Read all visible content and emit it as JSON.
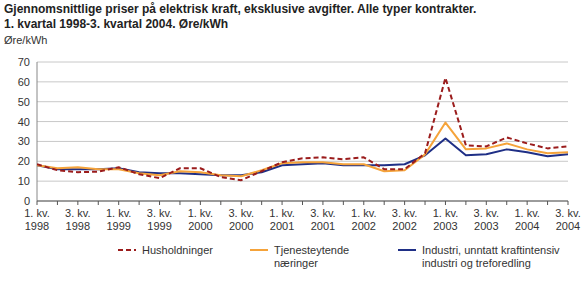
{
  "chart_data": {
    "type": "line",
    "title": "Gjennomsnittlige priser på elektrisk kraft, eksklusive avgifter. Alle typer kontrakter.",
    "subtitle": "1. kvartal 1998-3. kvartal 2004. Øre/kWh",
    "y_label": "Øre/kWh",
    "categories": [
      "1. kv. 1998",
      null,
      "3. kv. 1998",
      null,
      "1. kv. 1999",
      null,
      "3. kv. 1999",
      null,
      "1. kv. 2000",
      null,
      "3. kv. 2000",
      null,
      "1. kv. 2001",
      null,
      "3. kv. 2001",
      null,
      "1. kv. 2002",
      null,
      "3. kv. 2002",
      null,
      "1. kv. 2003",
      null,
      "3. kv. 2003",
      null,
      "1. kv. 2004",
      null,
      "3. kv. 2004"
    ],
    "series": [
      {
        "name": "Husholdninger",
        "color": "#9b1c1c",
        "line_style": "dashed",
        "values": [
          18.5,
          15.5,
          14.5,
          14.8,
          17,
          13.5,
          11.5,
          16.5,
          16.5,
          12,
          10.5,
          15,
          19.5,
          21.5,
          22,
          21,
          22,
          16,
          16,
          24,
          62,
          28,
          27.5,
          32,
          29,
          26.5,
          27.5
        ]
      },
      {
        "name": "Tjenesteytende næringer",
        "color": "#f5a33a",
        "line_style": "solid",
        "values": [
          18,
          16.5,
          17,
          16,
          16,
          14,
          13,
          15,
          14.5,
          13,
          12.5,
          15.5,
          19,
          19.5,
          19.5,
          18.5,
          18.5,
          15,
          15.5,
          23.5,
          39.5,
          26,
          26.5,
          29,
          26,
          24,
          24.5
        ]
      },
      {
        "name": "Industri, unntatt kraftintensiv industri og treforedling",
        "color": "#1f2f86",
        "line_style": "solid",
        "values": [
          18,
          16,
          16,
          16,
          16.5,
          14.5,
          14,
          14,
          13.5,
          13,
          13,
          14.5,
          18,
          18.5,
          19,
          18,
          18,
          18,
          18.5,
          23,
          31.5,
          23,
          23.5,
          26,
          24.5,
          22.5,
          23.5
        ]
      }
    ],
    "ylim": [
      0,
      70
    ],
    "yticks": [
      0,
      10,
      20,
      30,
      40,
      50,
      60,
      70
    ],
    "grid": true,
    "legend": "bottom"
  }
}
